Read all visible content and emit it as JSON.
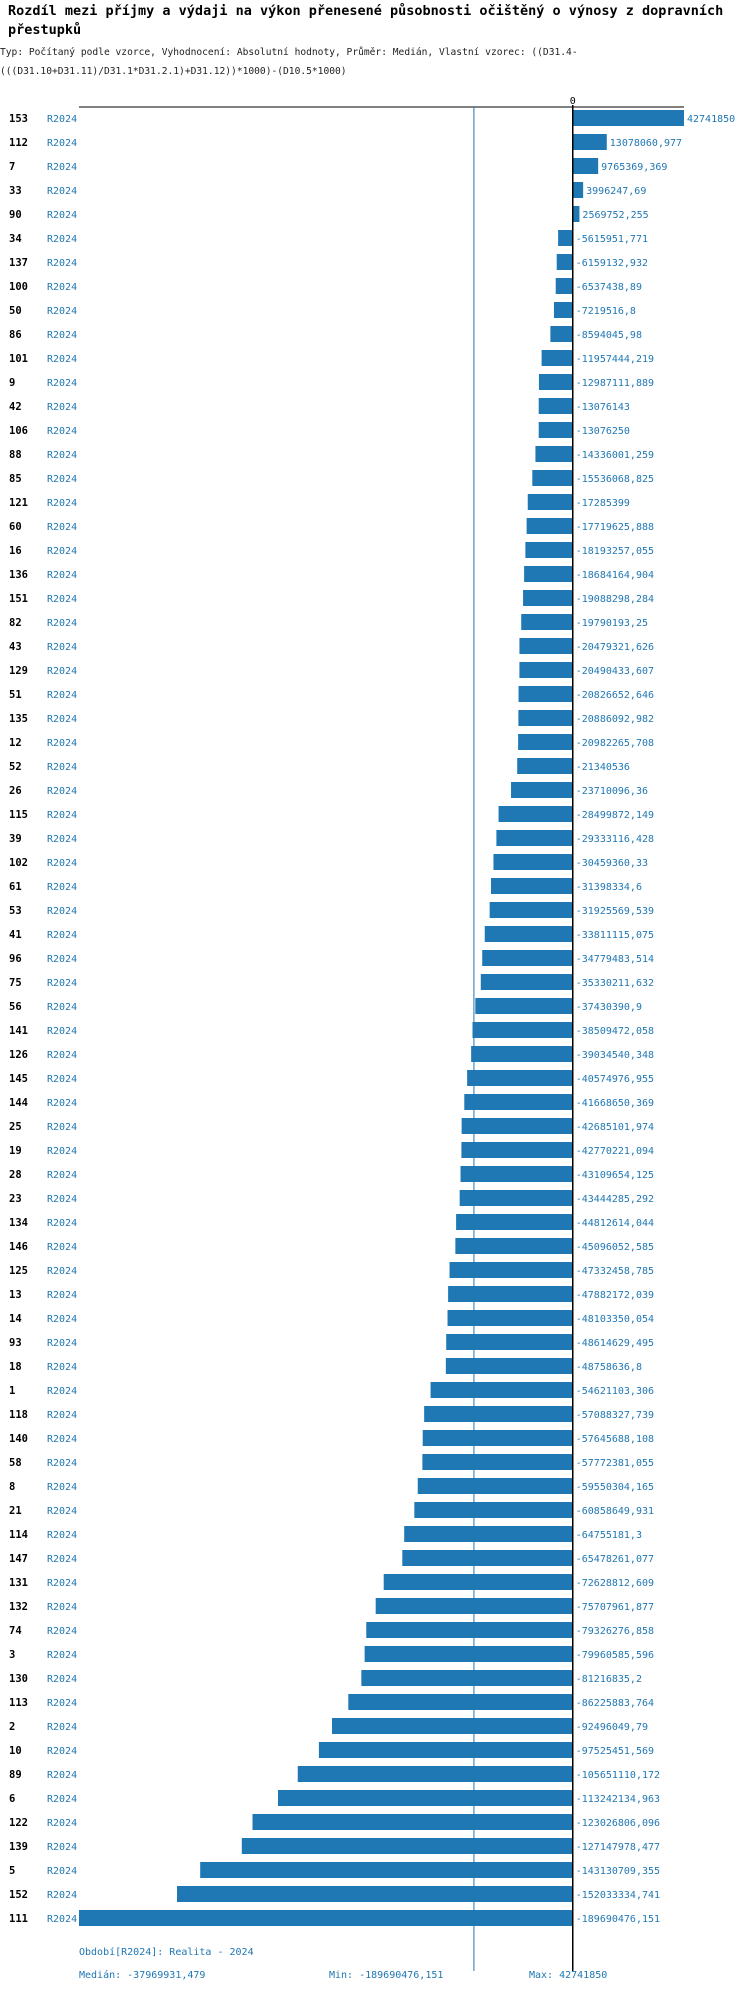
{
  "chart_data": {
    "type": "bar",
    "orientation": "horizontal",
    "title": "Rozdíl mezi příjmy a výdaji na výkon přenesené působnosti očištěný o výnosy z dopravních přestupků",
    "subtitle": "Typ: Počítaný podle vzorce, Vyhodnocení: Absolutní hodnoty, Průměr: Medián, Vlastní vzorec: ((D31.4-(((D31.10+D31.11)/D31.1*D31.2.1)+D31.12))*1000)-(D10.5*1000)",
    "zero_label": "0",
    "period_label": "R2024",
    "xlim": [
      -189690476.151,
      42741850
    ],
    "median": -37969931.479,
    "bar_color": "#1f77b4",
    "rows": [
      {
        "id": "153",
        "value": 42741850,
        "label": "42741850"
      },
      {
        "id": "112",
        "value": 13078060.977,
        "label": "13078060,977"
      },
      {
        "id": "7",
        "value": 9765369.369,
        "label": "9765369,369"
      },
      {
        "id": "33",
        "value": 3996247.69,
        "label": "3996247,69"
      },
      {
        "id": "90",
        "value": 2569752.255,
        "label": "2569752,255"
      },
      {
        "id": "34",
        "value": -5615951.771,
        "label": "-5615951,771"
      },
      {
        "id": "137",
        "value": -6159132.932,
        "label": "-6159132,932"
      },
      {
        "id": "100",
        "value": -6537438.89,
        "label": "-6537438,89"
      },
      {
        "id": "50",
        "value": -7219516.8,
        "label": "-7219516,8"
      },
      {
        "id": "86",
        "value": -8594045.98,
        "label": "-8594045,98"
      },
      {
        "id": "101",
        "value": -11957444.219,
        "label": "-11957444,219"
      },
      {
        "id": "9",
        "value": -12987111.889,
        "label": "-12987111,889"
      },
      {
        "id": "42",
        "value": -13076143,
        "label": "-13076143"
      },
      {
        "id": "106",
        "value": -13076250,
        "label": "-13076250"
      },
      {
        "id": "88",
        "value": -14336001.259,
        "label": "-14336001,259"
      },
      {
        "id": "85",
        "value": -15536068.825,
        "label": "-15536068,825"
      },
      {
        "id": "121",
        "value": -17285399,
        "label": "-17285399"
      },
      {
        "id": "60",
        "value": -17719625.888,
        "label": "-17719625,888"
      },
      {
        "id": "16",
        "value": -18193257.055,
        "label": "-18193257,055"
      },
      {
        "id": "136",
        "value": -18684164.904,
        "label": "-18684164,904"
      },
      {
        "id": "151",
        "value": -19088298.284,
        "label": "-19088298,284"
      },
      {
        "id": "82",
        "value": -19790193.25,
        "label": "-19790193,25"
      },
      {
        "id": "43",
        "value": -20479321.626,
        "label": "-20479321,626"
      },
      {
        "id": "129",
        "value": -20490433.607,
        "label": "-20490433,607"
      },
      {
        "id": "51",
        "value": -20826652.646,
        "label": "-20826652,646"
      },
      {
        "id": "135",
        "value": -20886092.982,
        "label": "-20886092,982"
      },
      {
        "id": "12",
        "value": -20982265.708,
        "label": "-20982265,708"
      },
      {
        "id": "52",
        "value": -21340536,
        "label": "-21340536"
      },
      {
        "id": "26",
        "value": -23710096.36,
        "label": "-23710096,36"
      },
      {
        "id": "115",
        "value": -28499872.149,
        "label": "-28499872,149"
      },
      {
        "id": "39",
        "value": -29333116.428,
        "label": "-29333116,428"
      },
      {
        "id": "102",
        "value": -30459360.33,
        "label": "-30459360,33"
      },
      {
        "id": "61",
        "value": -31398334.6,
        "label": "-31398334,6"
      },
      {
        "id": "53",
        "value": -31925569.539,
        "label": "-31925569,539"
      },
      {
        "id": "41",
        "value": -33811115.075,
        "label": "-33811115,075"
      },
      {
        "id": "96",
        "value": -34779483.514,
        "label": "-34779483,514"
      },
      {
        "id": "75",
        "value": -35330211.632,
        "label": "-35330211,632"
      },
      {
        "id": "56",
        "value": -37430390.9,
        "label": "-37430390,9"
      },
      {
        "id": "141",
        "value": -38509472.058,
        "label": "-38509472,058"
      },
      {
        "id": "126",
        "value": -39034540.348,
        "label": "-39034540,348"
      },
      {
        "id": "145",
        "value": -40574976.955,
        "label": "-40574976,955"
      },
      {
        "id": "144",
        "value": -41668650.369,
        "label": "-41668650,369"
      },
      {
        "id": "25",
        "value": -42685101.974,
        "label": "-42685101,974"
      },
      {
        "id": "19",
        "value": -42770221.094,
        "label": "-42770221,094"
      },
      {
        "id": "28",
        "value": -43109654.125,
        "label": "-43109654,125"
      },
      {
        "id": "23",
        "value": -43444285.292,
        "label": "-43444285,292"
      },
      {
        "id": "134",
        "value": -44812614.044,
        "label": "-44812614,044"
      },
      {
        "id": "146",
        "value": -45096052.585,
        "label": "-45096052,585"
      },
      {
        "id": "125",
        "value": -47332458.785,
        "label": "-47332458,785"
      },
      {
        "id": "13",
        "value": -47882172.039,
        "label": "-47882172,039"
      },
      {
        "id": "14",
        "value": -48103350.054,
        "label": "-48103350,054"
      },
      {
        "id": "93",
        "value": -48614629.495,
        "label": "-48614629,495"
      },
      {
        "id": "18",
        "value": -48758636.8,
        "label": "-48758636,8"
      },
      {
        "id": "1",
        "value": -54621103.306,
        "label": "-54621103,306"
      },
      {
        "id": "118",
        "value": -57088327.739,
        "label": "-57088327,739"
      },
      {
        "id": "140",
        "value": -57645688.108,
        "label": "-57645688,108"
      },
      {
        "id": "58",
        "value": -57772381.055,
        "label": "-57772381,055"
      },
      {
        "id": "8",
        "value": -59550304.165,
        "label": "-59550304,165"
      },
      {
        "id": "21",
        "value": -60858649.931,
        "label": "-60858649,931"
      },
      {
        "id": "114",
        "value": -64755181.3,
        "label": "-64755181,3"
      },
      {
        "id": "147",
        "value": -65478261.077,
        "label": "-65478261,077"
      },
      {
        "id": "131",
        "value": -72628812.609,
        "label": "-72628812,609"
      },
      {
        "id": "132",
        "value": -75707961.877,
        "label": "-75707961,877"
      },
      {
        "id": "74",
        "value": -79326276.858,
        "label": "-79326276,858"
      },
      {
        "id": "3",
        "value": -79960585.596,
        "label": "-79960585,596"
      },
      {
        "id": "130",
        "value": -81216835.2,
        "label": "-81216835,2"
      },
      {
        "id": "113",
        "value": -86225883.764,
        "label": "-86225883,764"
      },
      {
        "id": "2",
        "value": -92496049.79,
        "label": "-92496049,79"
      },
      {
        "id": "10",
        "value": -97525451.569,
        "label": "-97525451,569"
      },
      {
        "id": "89",
        "value": -105651110.172,
        "label": "-105651110,172"
      },
      {
        "id": "6",
        "value": -113242134.963,
        "label": "-113242134,963"
      },
      {
        "id": "122",
        "value": -123026806.096,
        "label": "-123026806,096"
      },
      {
        "id": "139",
        "value": -127147978.477,
        "label": "-127147978,477"
      },
      {
        "id": "5",
        "value": -143130709.355,
        "label": "-143130709,355"
      },
      {
        "id": "152",
        "value": -152033334.741,
        "label": "-152033334,741"
      },
      {
        "id": "111",
        "value": -189690476.151,
        "label": "-189690476,151"
      }
    ]
  },
  "footer": {
    "period_line": "Období[R2024]: Realita - 2024",
    "median_text": "Medián: -37969931,479",
    "min_text": "Min: -189690476,151",
    "max_text": "Max: 42741850"
  }
}
